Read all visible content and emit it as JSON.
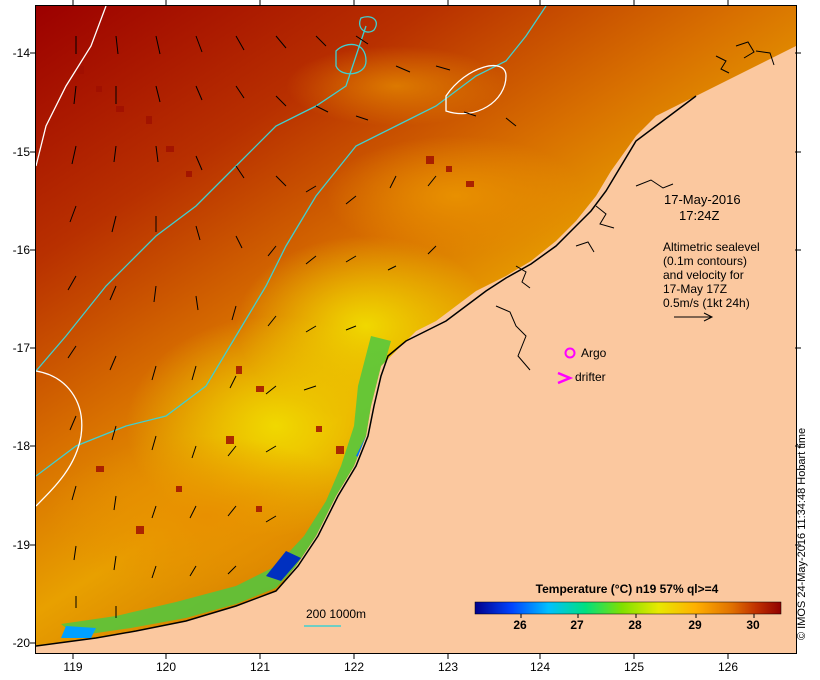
{
  "map": {
    "latitude_labels": [
      "-14",
      "-15",
      "-16",
      "-17",
      "-18",
      "-19",
      "-20"
    ],
    "longitude_labels": [
      "119",
      "120",
      "121",
      "122",
      "123",
      "124",
      "125",
      "126"
    ],
    "datetime": {
      "date": "17-May-2016",
      "time": "17:24Z"
    },
    "altimetry_note": [
      "Altimetric sealevel",
      "(0.1m contours)",
      "and velocity for",
      "17-May 17Z",
      "0.5m/s (1kt 24h)"
    ],
    "legend": {
      "argo": "Argo",
      "drifter": "drifter",
      "argo_color": "#ff00ff",
      "drifter_color": "#ff00ff"
    },
    "depth_contour_label": "200  1000m",
    "colorbar": {
      "title": "Temperature (°C) n19 57% ql>=4",
      "tick_labels": [
        "26",
        "27",
        "28",
        "29",
        "30"
      ],
      "colors": [
        "#00008b",
        "#0044ff",
        "#00c0ff",
        "#00e080",
        "#80e000",
        "#e8e800",
        "#ffb000",
        "#e07000",
        "#c03000",
        "#900000"
      ]
    },
    "credit": "© IMOS 24-May-2016 11:34:48 Hobart time",
    "colors": {
      "land": "#fbc89f",
      "warm_sea": "#9c0000",
      "contour_cyan": "#40d0d0"
    }
  }
}
